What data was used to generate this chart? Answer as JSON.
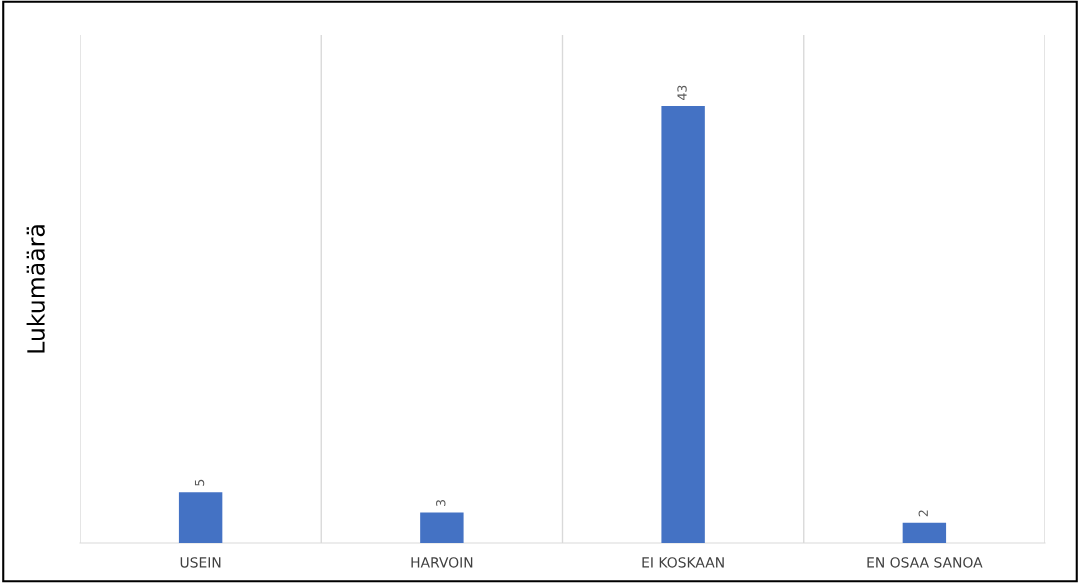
{
  "chart_data": {
    "type": "bar",
    "ylabel": "Lukumäärä",
    "categories": [
      "USEIN",
      "HARVOIN",
      "EI KOSKAAN",
      "EN OSAA SANOA"
    ],
    "values": [
      5,
      3,
      43,
      2
    ],
    "color": "#4472c4",
    "ylim": [
      0,
      50
    ],
    "tick_labels": "x",
    "grid": "x",
    "data_labels": true
  }
}
